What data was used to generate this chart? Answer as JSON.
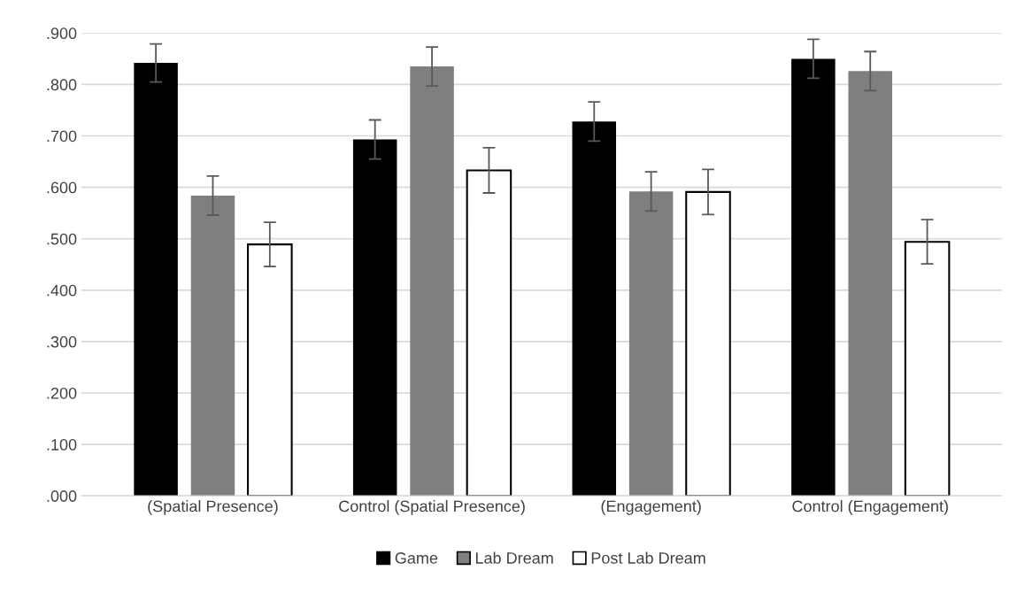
{
  "chart_data": {
    "type": "bar",
    "categories": [
      "(Spatial Presence)",
      "Control (Spatial Presence)",
      "(Engagement)",
      "Control (Engagement)"
    ],
    "series": [
      {
        "name": "Game",
        "color": "#000000",
        "values": [
          0.842,
          0.693,
          0.728,
          0.85
        ],
        "errors": [
          0.037,
          0.038,
          0.038,
          0.038
        ]
      },
      {
        "name": "Lab Dream",
        "color": "#7f7f7f",
        "values": [
          0.584,
          0.835,
          0.592,
          0.826
        ],
        "errors": [
          0.038,
          0.038,
          0.038,
          0.038
        ]
      },
      {
        "name": "Post Lab Dream",
        "color": "#ffffff",
        "values": [
          0.489,
          0.633,
          0.591,
          0.494
        ],
        "errors": [
          0.043,
          0.044,
          0.044,
          0.043
        ]
      }
    ],
    "ylim": [
      0,
      0.9
    ],
    "yticks": [
      {
        "value": 0,
        "label": ".000"
      },
      {
        "value": 0.1,
        "label": ".100"
      },
      {
        "value": 0.2,
        "label": ".200"
      },
      {
        "value": 0.3,
        "label": ".300"
      },
      {
        "value": 0.4,
        "label": ".400"
      },
      {
        "value": 0.5,
        "label": ".500"
      },
      {
        "value": 0.6,
        "label": ".600"
      },
      {
        "value": 0.7,
        "label": ".700"
      },
      {
        "value": 0.8,
        "label": ".800"
      },
      {
        "value": 0.9,
        "label": ".900"
      }
    ],
    "grid": "y",
    "legend": "bottom"
  }
}
